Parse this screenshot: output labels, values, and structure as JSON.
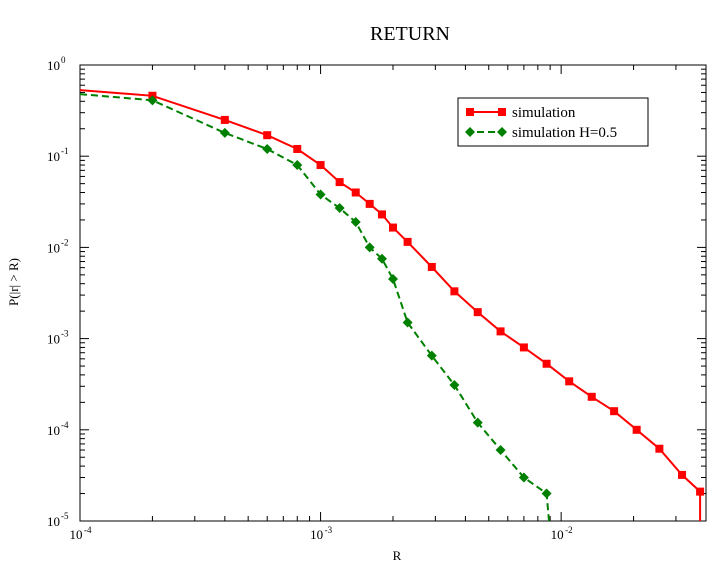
{
  "chart_data": {
    "type": "line",
    "title": "RETURN",
    "xlabel": "R",
    "ylabel": "P(|r| > R)",
    "xscale": "log",
    "yscale": "log",
    "xlim": [
      0.0001,
      0.04
    ],
    "ylim": [
      1e-05,
      1
    ],
    "xticks": [
      {
        "base": "10",
        "exp": "-4",
        "value": 0.0001
      },
      {
        "base": "10",
        "exp": "-3",
        "value": 0.001
      },
      {
        "base": "10",
        "exp": "-2",
        "value": 0.01
      }
    ],
    "yticks": [
      {
        "base": "10",
        "exp": "0",
        "value": 1
      },
      {
        "base": "10",
        "exp": "-1",
        "value": 0.1
      },
      {
        "base": "10",
        "exp": "-2",
        "value": 0.01
      },
      {
        "base": "10",
        "exp": "-3",
        "value": 0.001
      },
      {
        "base": "10",
        "exp": "-4",
        "value": 0.0001
      },
      {
        "base": "10",
        "exp": "-5",
        "value": 1e-05
      }
    ],
    "grid": false,
    "legend_position": "top-right",
    "series": [
      {
        "name": "simulation",
        "color": "#ff0000",
        "line_style": "solid",
        "marker": "square",
        "x": [
          0.0001,
          0.0002,
          0.0004,
          0.0006,
          0.0008,
          0.001,
          0.0012,
          0.0014,
          0.0016,
          0.0018,
          0.002,
          0.0023,
          0.0029,
          0.0036,
          0.0045,
          0.0056,
          0.007,
          0.0087,
          0.0108,
          0.0134,
          0.0166,
          0.0206,
          0.0256,
          0.0318,
          0.0378,
          0.0378
        ],
        "y": [
          0.53,
          0.46,
          0.25,
          0.17,
          0.12,
          0.08,
          0.052,
          0.04,
          0.03,
          0.023,
          0.0165,
          0.0115,
          0.0061,
          0.0033,
          0.00195,
          0.0012,
          0.0008,
          0.00053,
          0.00034,
          0.00023,
          0.00016,
          0.0001,
          6.2e-05,
          3.2e-05,
          2.1e-05,
          1e-05
        ],
        "markers_on_points": [
          false,
          true,
          true,
          true,
          true,
          true,
          true,
          true,
          true,
          true,
          true,
          true,
          true,
          true,
          true,
          true,
          true,
          true,
          true,
          true,
          true,
          true,
          true,
          true,
          true,
          false
        ]
      },
      {
        "name": "simulation H=0.5",
        "color": "#008000",
        "line_style": "dashed",
        "marker": "diamond",
        "x": [
          0.0001,
          0.0002,
          0.0004,
          0.0006,
          0.0008,
          0.001,
          0.0012,
          0.0014,
          0.0016,
          0.0018,
          0.002,
          0.0023,
          0.0029,
          0.0036,
          0.0045,
          0.0056,
          0.007,
          0.0087,
          0.0089
        ],
        "y": [
          0.48,
          0.41,
          0.18,
          0.12,
          0.08,
          0.038,
          0.027,
          0.019,
          0.01,
          0.0075,
          0.0045,
          0.0015,
          0.00065,
          0.00031,
          0.00012,
          6e-05,
          3e-05,
          2e-05,
          1e-05
        ],
        "markers_on_points": [
          false,
          true,
          true,
          true,
          true,
          true,
          true,
          true,
          true,
          true,
          true,
          true,
          true,
          true,
          true,
          true,
          true,
          true,
          false
        ]
      }
    ]
  }
}
